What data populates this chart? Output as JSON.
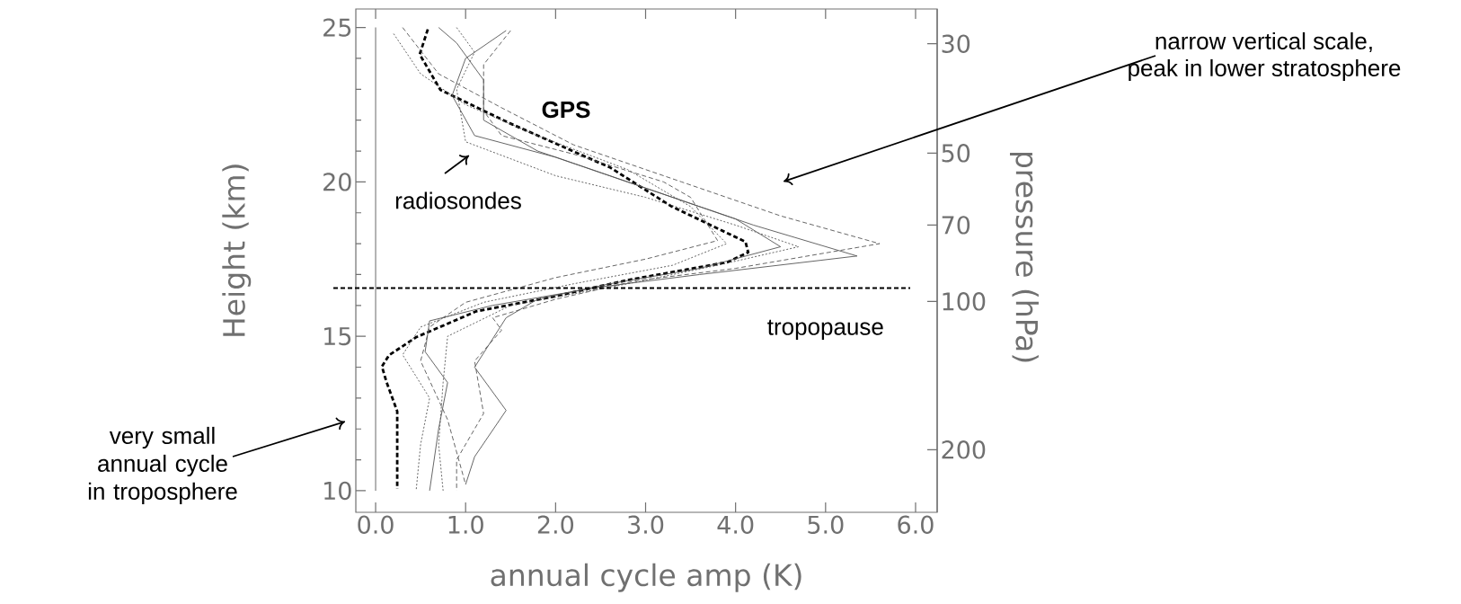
{
  "chart_data": {
    "type": "line",
    "xlabel": "annual cycle amp (K)",
    "ylabel": "Height (km)",
    "y2label": "pressure (hPa)",
    "xlim": [
      -0.22,
      6.24
    ],
    "ylim": [
      9.3,
      25.6
    ],
    "y2lim": [
      268,
      25.5
    ],
    "log": "y2",
    "xticks": [
      {
        "value": 0,
        "label": "0.0"
      },
      {
        "value": 1,
        "label": "1.0"
      },
      {
        "value": 2,
        "label": "2.0"
      },
      {
        "value": 3,
        "label": "3.0"
      },
      {
        "value": 4,
        "label": "4.0"
      },
      {
        "value": 5,
        "label": "5.0"
      },
      {
        "value": 6,
        "label": "6.0"
      }
    ],
    "yticks": [
      10,
      15,
      20,
      25
    ],
    "y2ticks": [
      30,
      50,
      70,
      100,
      200
    ],
    "grid": false,
    "marker": "none",
    "series": [
      {
        "color": "#000000",
        "line_style": "dashed",
        "x": [
          0.58,
          0.49,
          0.72,
          1.49,
          2.61,
          3.28,
          4.11,
          4.14,
          3.91,
          2.8,
          1.95,
          1.12,
          0.45,
          0.15,
          0.07,
          0.12,
          0.24,
          0.24
        ],
        "values": [
          24.94,
          24.13,
          22.98,
          21.9,
          20.46,
          19.22,
          18.06,
          17.72,
          17.4,
          16.82,
          16.27,
          15.81,
          14.97,
          14.39,
          14.02,
          13.53,
          12.57,
          10.06
        ]
      },
      {
        "color": "#555555",
        "line_style": "solid",
        "x": [
          1.45,
          1.0,
          0.85,
          1.1,
          2.0,
          3.0,
          4.2,
          5.35,
          3.6,
          2.5,
          1.3,
          0.6,
          0.55,
          0.8,
          0.7,
          0.6
        ],
        "values": [
          24.9,
          24.0,
          22.8,
          21.5,
          20.8,
          19.8,
          18.6,
          17.6,
          17.0,
          16.6,
          16.0,
          15.5,
          14.5,
          13.5,
          12.0,
          10.0
        ]
      },
      {
        "color": "#555555",
        "line_style": "dashed",
        "x": [
          0.3,
          0.7,
          1.4,
          2.2,
          3.4,
          4.5,
          5.6,
          4.0,
          2.9,
          2.0,
          1.3,
          1.4,
          1.1,
          1.2,
          0.9,
          0.9
        ],
        "values": [
          25.0,
          23.5,
          22.4,
          21.2,
          20.0,
          18.9,
          18.0,
          17.2,
          16.8,
          16.2,
          15.6,
          15.2,
          14.2,
          12.5,
          11.0,
          10.0
        ]
      },
      {
        "color": "#555555",
        "line_style": "dotted",
        "x": [
          0.9,
          1.1,
          0.9,
          1.0,
          2.0,
          3.0,
          4.0,
          4.7,
          3.8,
          2.8,
          1.5,
          0.8,
          0.75,
          0.7,
          0.75
        ],
        "values": [
          25.0,
          24.2,
          23.0,
          21.3,
          20.2,
          19.5,
          18.6,
          17.9,
          17.3,
          16.7,
          16.0,
          15.0,
          13.5,
          11.5,
          10.0
        ]
      },
      {
        "color": "#555555",
        "line_style": "dashed",
        "x": [
          1.5,
          1.2,
          1.2,
          1.4,
          2.2,
          3.2,
          3.5,
          3.8,
          3.0,
          2.0,
          1.0,
          0.6,
          0.5,
          0.8,
          1.0
        ],
        "values": [
          24.9,
          23.8,
          22.3,
          21.5,
          20.9,
          20.0,
          19.5,
          18.1,
          17.5,
          16.9,
          16.1,
          15.3,
          14.2,
          12.3,
          10.2
        ]
      },
      {
        "color": "#555555",
        "line_style": "solid",
        "x": [
          0.7,
          0.9,
          1.2,
          1.2,
          1.8,
          3.0,
          4.0,
          4.5,
          3.6,
          2.6,
          1.8,
          1.45,
          1.1,
          1.45,
          1.1,
          1.0
        ],
        "values": [
          25.0,
          24.5,
          23.3,
          22.0,
          21.0,
          19.8,
          18.8,
          17.9,
          17.2,
          16.7,
          16.2,
          15.6,
          14.0,
          12.6,
          11.1,
          10.2
        ]
      },
      {
        "color": "#555555",
        "line_style": "dotted",
        "x": [
          0.2,
          0.5,
          1.0,
          1.8,
          2.8,
          3.5,
          3.9,
          3.3,
          2.2,
          1.2,
          0.5,
          0.3,
          0.6,
          0.5,
          0.45
        ],
        "values": [
          24.8,
          23.5,
          22.5,
          21.5,
          20.4,
          19.2,
          18.0,
          17.3,
          16.7,
          16.1,
          15.3,
          14.4,
          13.0,
          11.5,
          10.0
        ]
      }
    ],
    "ref_lines": [
      {
        "axis": "y",
        "value": 16.56,
        "label": "tropopause",
        "color": "#000000",
        "line_style": "dashed"
      },
      {
        "axis": "x",
        "value": 0,
        "color": "#808080",
        "line_style": "solid"
      }
    ],
    "annotations": [
      "GPS",
      "radiosondes",
      "narrow vertical scale,",
      "peak in lower stratosphere",
      "very small annual cycle in troposphere"
    ]
  }
}
